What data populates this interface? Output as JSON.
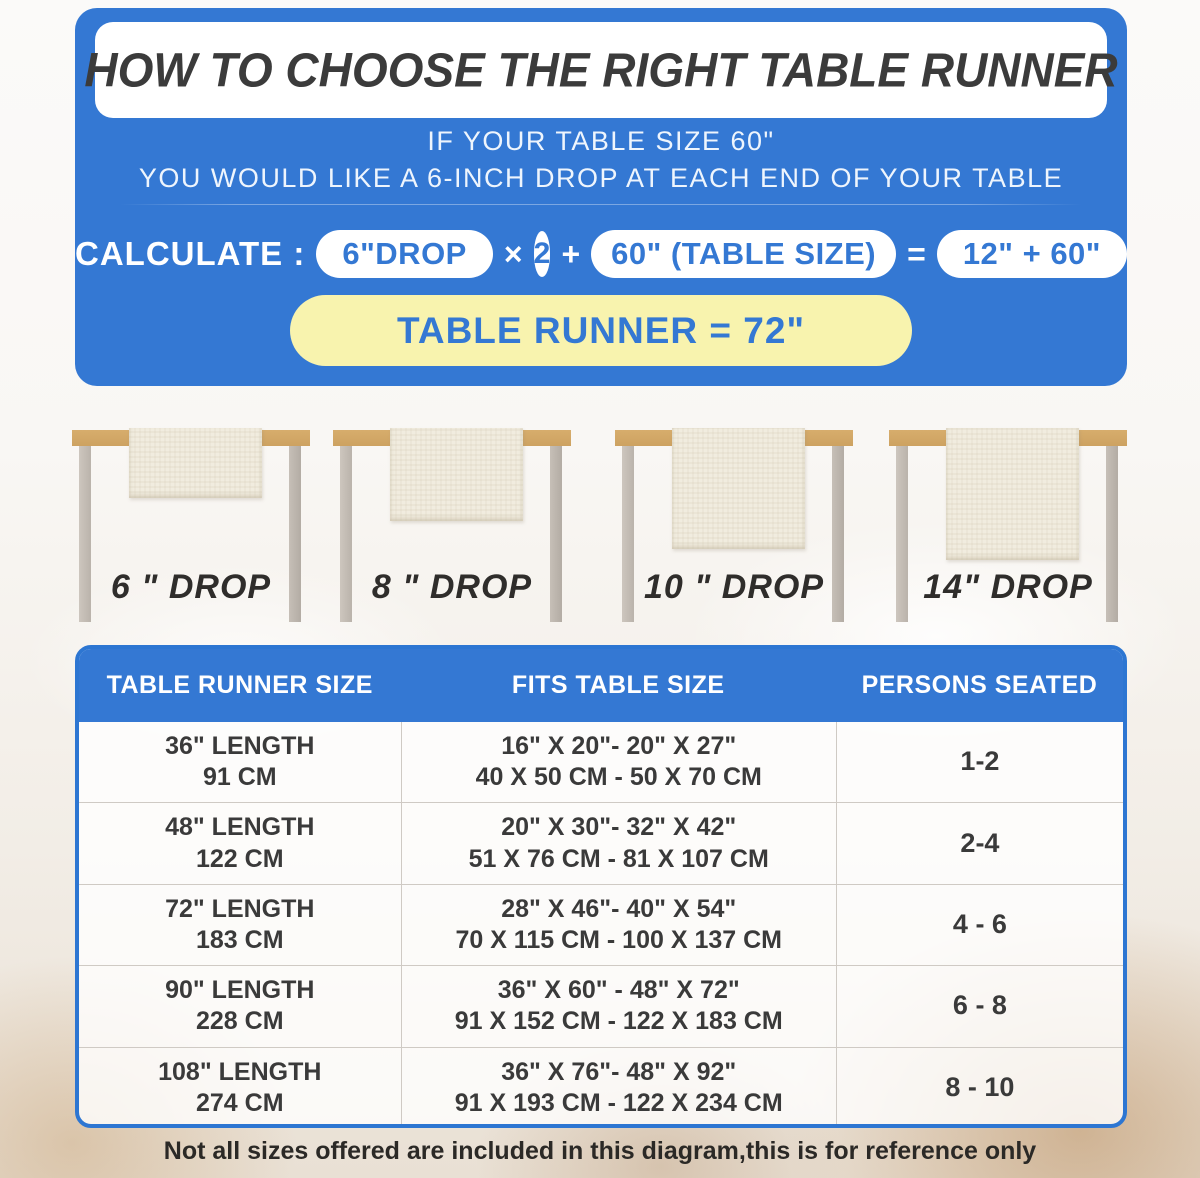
{
  "colors": {
    "banner_blue": "#3478d3",
    "table_border_blue": "#2d76d2",
    "highlight_yellow": "#f8f3ae",
    "title_dark": "#3b3b3b",
    "wood_tan": "#d3a967",
    "leg_gray": "#c2bbb3",
    "runner_cream": "#f1ecdf"
  },
  "banner": {
    "title": "HOW TO CHOOSE THE RIGHT TABLE RUNNER",
    "intro_line1": "IF YOUR TABLE SIZE 60\"",
    "intro_line2": "YOU WOULD LIKE A 6-INCH DROP AT EACH END OF YOUR TABLE",
    "calc": {
      "label": "CALCULATE :",
      "drop_pill": "6\"DROP",
      "times": "×",
      "multiplier": "2",
      "plus": "+",
      "table_size_pill": "60\" (TABLE SIZE)",
      "equals": "=",
      "sum_pill": "12\" + 60\"",
      "result": "TABLE RUNNER = 72\""
    }
  },
  "drops": [
    {
      "label": "6 \" DROP"
    },
    {
      "label": "8 \" DROP"
    },
    {
      "label": "10 \" DROP"
    },
    {
      "label": "14\" DROP"
    }
  ],
  "size_table": {
    "headers": [
      "TABLE RUNNER SIZE",
      "FITS TABLE SIZE",
      "PERSONS SEATED"
    ],
    "rows": [
      {
        "runner_in": "36\" LENGTH",
        "runner_cm": "91 CM",
        "fits_in": "16\" X 20\"- 20\" X 27\"",
        "fits_cm": "40 X 50 CM - 50 X 70 CM",
        "persons": "1-2"
      },
      {
        "runner_in": "48\" LENGTH",
        "runner_cm": "122 CM",
        "fits_in": "20\" X 30\"- 32\" X 42\"",
        "fits_cm": "51 X 76 CM - 81 X 107 CM",
        "persons": "2-4"
      },
      {
        "runner_in": "72\" LENGTH",
        "runner_cm": "183 CM",
        "fits_in": "28\" X 46\"- 40\" X 54\"",
        "fits_cm": "70 X 115 CM - 100 X 137 CM",
        "persons": "4 - 6"
      },
      {
        "runner_in": "90\" LENGTH",
        "runner_cm": "228 CM",
        "fits_in": "36\" X 60\" - 48\" X 72\"",
        "fits_cm": "91 X 152 CM - 122 X 183 CM",
        "persons": "6 - 8"
      },
      {
        "runner_in": "108\" LENGTH",
        "runner_cm": "274 CM",
        "fits_in": "36\" X 76\"- 48\" X 92\"",
        "fits_cm": "91 X 193 CM - 122 X 234 CM",
        "persons": "8 - 10"
      }
    ]
  },
  "footer": {
    "note": "Not all sizes offered are included in this diagram,this is for reference only"
  }
}
